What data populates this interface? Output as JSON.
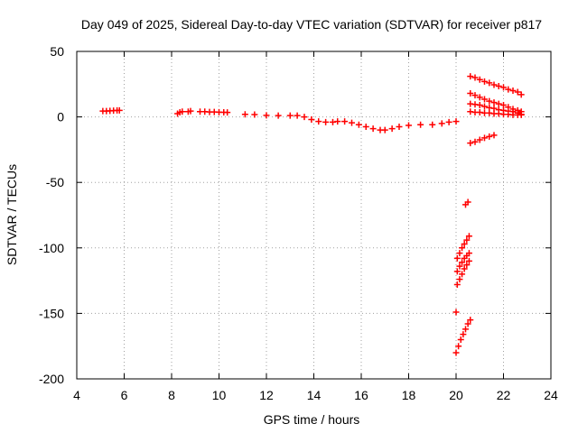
{
  "chart_data": {
    "type": "scatter",
    "title": "Day 049 of 2025, Sidereal Day-to-day VTEC variation (SDTVAR) for receiver p817",
    "xlabel": "GPS time / hours",
    "ylabel": "SDTVAR / TECUs",
    "xlim": [
      4,
      24
    ],
    "ylim": [
      -200,
      50
    ],
    "xticks": [
      4,
      6,
      8,
      10,
      12,
      14,
      16,
      18,
      20,
      22,
      24
    ],
    "yticks": [
      -200,
      -150,
      -100,
      -50,
      0,
      50
    ],
    "grid": true,
    "marker": "plus",
    "color": "#ff0000",
    "series": [
      {
        "name": "seg1",
        "x": [
          5.1,
          5.25,
          5.4,
          5.55,
          5.7,
          5.8
        ],
        "y": [
          4.5,
          4.5,
          4.6,
          4.8,
          5,
          5
        ]
      },
      {
        "name": "seg2",
        "x": [
          8.25,
          8.35,
          8.45,
          8.7,
          8.8
        ],
        "y": [
          2.5,
          3.5,
          4,
          4,
          4.5
        ]
      },
      {
        "name": "seg3",
        "x": [
          9.2,
          9.4,
          9.6,
          9.8,
          10.0,
          10.2,
          10.35
        ],
        "y": [
          4,
          4,
          3.8,
          3.8,
          3.6,
          3.5,
          3.4
        ]
      },
      {
        "name": "seg4",
        "x": [
          11.1,
          11.5,
          12.0,
          12.5,
          13.0,
          13.3,
          13.6,
          13.9,
          14.2,
          14.5,
          14.8,
          15.0
        ],
        "y": [
          2,
          1.8,
          1.2,
          1,
          1,
          1,
          0,
          -2,
          -3.5,
          -4,
          -4,
          -3.5
        ]
      },
      {
        "name": "seg5",
        "x": [
          15.3,
          15.6,
          15.9,
          16.2,
          16.5,
          16.8
        ],
        "y": [
          -3.5,
          -4.5,
          -6,
          -7.5,
          -9,
          -10
        ]
      },
      {
        "name": "seg6",
        "x": [
          17.0,
          17.3,
          17.6,
          18.0,
          18.5,
          19.0,
          19.4,
          19.7,
          20.0
        ],
        "y": [
          -10,
          -9,
          -7.5,
          -6.5,
          -6,
          -6,
          -5,
          -4,
          -3.5
        ]
      },
      {
        "name": "seg7",
        "x": [
          20.0,
          20.1,
          20.2,
          20.3,
          20.4,
          20.5,
          20.6
        ],
        "y": [
          -180,
          -175,
          -170,
          -166,
          -162,
          -158,
          -155
        ]
      },
      {
        "name": "seg8",
        "x": [
          20.05,
          20.15,
          20.25,
          20.35,
          20.45,
          20.55
        ],
        "y": [
          -128,
          -124,
          -120,
          -116,
          -113,
          -110
        ]
      },
      {
        "name": "seg9",
        "x": [
          20.05,
          20.15,
          20.25,
          20.35,
          20.45,
          20.55
        ],
        "y": [
          -118,
          -114,
          -111,
          -108,
          -106,
          -104
        ]
      },
      {
        "name": "seg10",
        "x": [
          20.05,
          20.15,
          20.25,
          20.35,
          20.45,
          20.55
        ],
        "y": [
          -108,
          -104,
          -100,
          -97,
          -94,
          -91
        ]
      },
      {
        "name": "seg11",
        "x": [
          20.0
        ],
        "y": [
          -149
        ]
      },
      {
        "name": "seg12",
        "x": [
          20.4,
          20.5
        ],
        "y": [
          -67,
          -65
        ]
      },
      {
        "name": "seg13",
        "x": [
          20.6,
          20.8,
          21.0,
          21.2,
          21.4,
          21.6,
          21.8,
          22.0,
          22.2,
          22.4,
          22.6,
          22.75
        ],
        "y": [
          31,
          30,
          28.5,
          27,
          26,
          24.5,
          23.5,
          22.5,
          21,
          20,
          19,
          17
        ]
      },
      {
        "name": "seg14",
        "x": [
          20.6,
          20.8,
          21.0,
          21.2,
          21.4,
          21.6,
          21.8,
          22.0,
          22.2,
          22.4,
          22.6,
          22.75
        ],
        "y": [
          18,
          16.5,
          15,
          13.5,
          12,
          11,
          10,
          9,
          7.5,
          6,
          5,
          4
        ]
      },
      {
        "name": "seg15",
        "x": [
          20.6,
          20.8,
          21.0,
          21.2,
          21.4,
          21.6,
          21.8,
          22.0,
          22.2,
          22.4,
          22.6,
          22.75
        ],
        "y": [
          10,
          9.5,
          9,
          8,
          7,
          6.5,
          5.5,
          5,
          4.5,
          4,
          3,
          2
        ]
      },
      {
        "name": "seg16",
        "x": [
          20.6,
          20.8,
          21.0,
          21.2,
          21.4,
          21.6,
          21.8,
          22.0,
          22.2,
          22.4,
          22.6,
          22.75
        ],
        "y": [
          4,
          3.5,
          3.5,
          3,
          3,
          2.5,
          2.5,
          2,
          2,
          1.5,
          1.5,
          1.5
        ]
      },
      {
        "name": "seg17",
        "x": [
          20.6,
          20.8,
          21.0,
          21.2,
          21.4,
          21.6
        ],
        "y": [
          -20,
          -19,
          -17.5,
          -16,
          -15,
          -14
        ]
      }
    ]
  }
}
